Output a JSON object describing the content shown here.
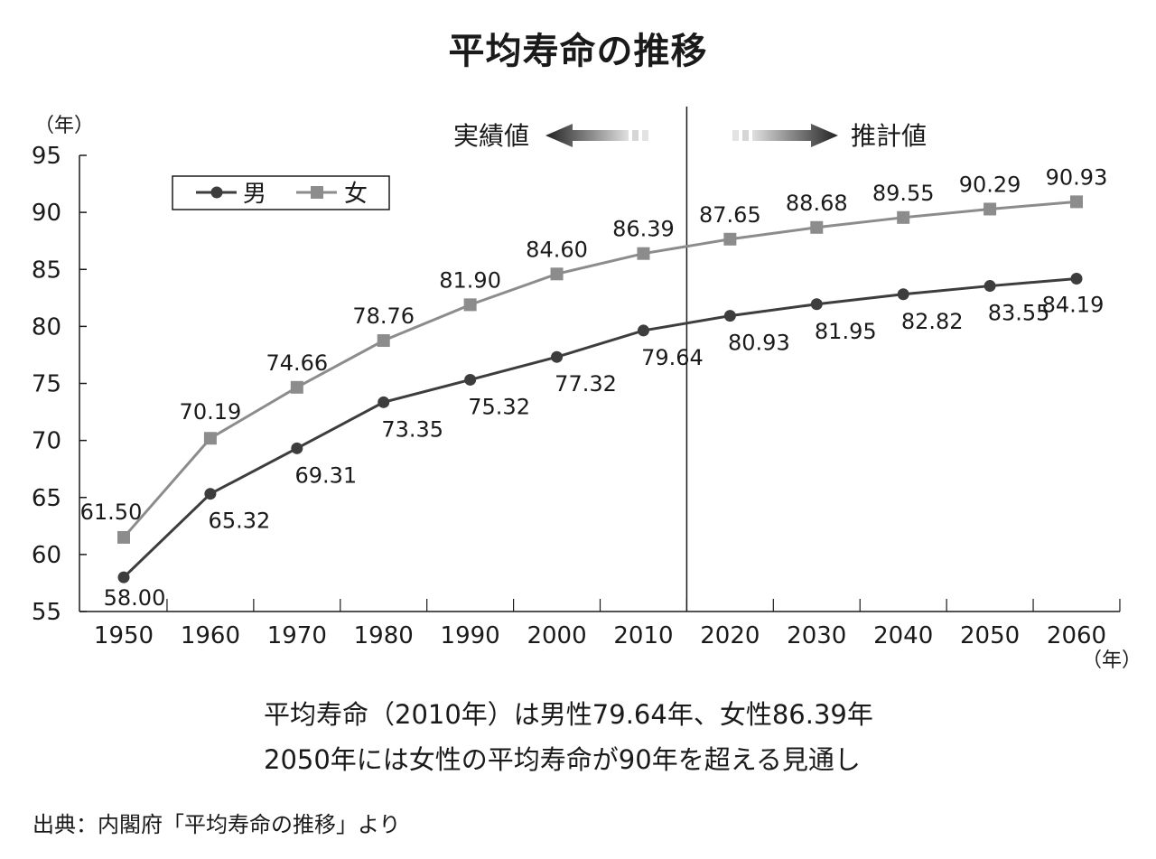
{
  "title": "平均寿命の推移",
  "chart_data": {
    "type": "line",
    "title": "平均寿命の推移",
    "ylabel": "（年）",
    "xlabel": "（年）",
    "x": [
      1950,
      1960,
      1970,
      1980,
      1990,
      2000,
      2010,
      2020,
      2030,
      2040,
      2050,
      2060
    ],
    "x_tick_labels": [
      "1950",
      "1960",
      "1970",
      "1980",
      "1990",
      "2000",
      "2010",
      "2020",
      "2030",
      "2040",
      "2050",
      "2060"
    ],
    "y_ticks": [
      55,
      60,
      65,
      70,
      75,
      80,
      85,
      90,
      95
    ],
    "ylim": [
      55,
      95
    ],
    "grid": false,
    "legend_position": "top-left",
    "series": [
      {
        "name": "男",
        "marker": "circle",
        "color": "#3d3d3d",
        "values": [
          58.0,
          65.32,
          69.31,
          73.35,
          75.32,
          77.32,
          79.64,
          80.93,
          81.95,
          82.82,
          83.55,
          84.19
        ],
        "labels": [
          "58.00",
          "65.32",
          "69.31",
          "73.35",
          "75.32",
          "77.32",
          "79.64",
          "80.93",
          "81.95",
          "82.82",
          "83.55",
          "84.19"
        ]
      },
      {
        "name": "女",
        "marker": "square",
        "color": "#8c8c8c",
        "values": [
          61.5,
          70.19,
          74.66,
          78.76,
          81.9,
          84.6,
          86.39,
          87.65,
          88.68,
          89.55,
          90.29,
          90.93
        ],
        "labels": [
          "61.50",
          "70.19",
          "74.66",
          "78.76",
          "81.90",
          "84.60",
          "86.39",
          "87.65",
          "88.68",
          "89.55",
          "90.29",
          "90.93"
        ]
      }
    ],
    "annotations": {
      "actual_label": "実績値",
      "forecast_label": "推計値"
    }
  },
  "summary": {
    "line1": "平均寿命（2010年）は男性79.64年、女性86.39年",
    "line2": "2050年には女性の平均寿命が90年を超える見通し"
  },
  "source": "出典：内閣府「平均寿命の推移」より",
  "colors": {
    "male": "#3d3d3d",
    "female": "#8c8c8c",
    "axis": "#1a1a1a"
  }
}
